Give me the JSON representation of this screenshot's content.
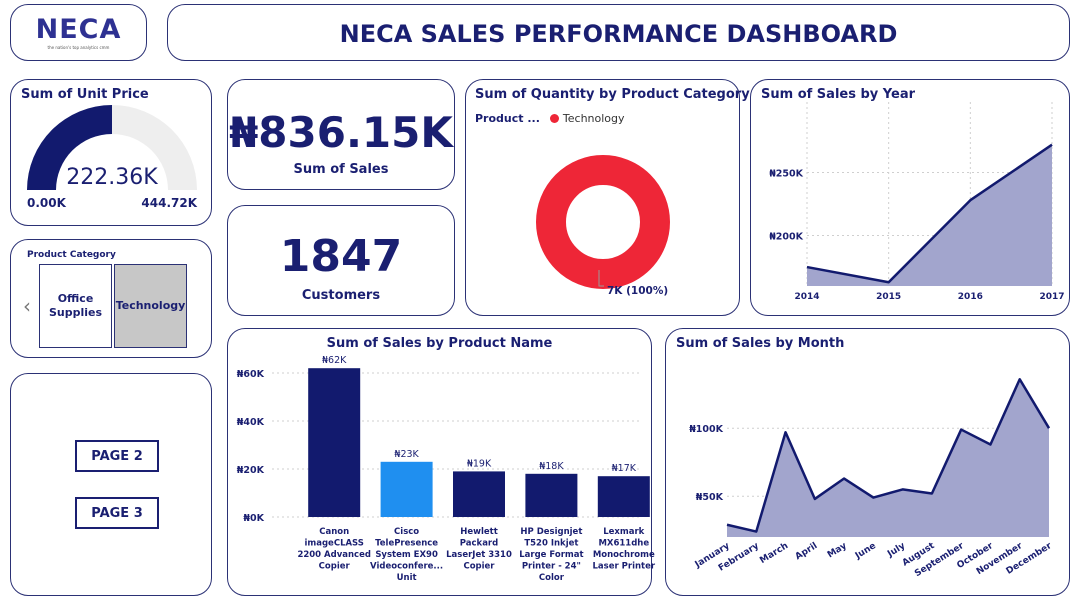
{
  "logo": {
    "name": "NECA",
    "tagline": "the nation's top analytics cmm"
  },
  "header": {
    "title": "NECA SALES PERFORMANCE DASHBOARD"
  },
  "gauge": {
    "title": "Sum of Unit Price",
    "value": 222.36,
    "value_label": "222.36K",
    "min_label": "0.00K",
    "max_label": "444.72K",
    "min": 0,
    "max": 444.72,
    "fill_color": "#121a6e",
    "track_color": "#eeeeee"
  },
  "kpis": {
    "sales": {
      "value": "₦836.15K",
      "label": "Sum of Sales"
    },
    "customers": {
      "value": "1847",
      "label": "Customers"
    }
  },
  "slicer": {
    "title": "Product Category",
    "prev_icon": "chevron-left-icon",
    "items": [
      {
        "label": "Office Supplies",
        "selected": false
      },
      {
        "label": "Technology",
        "selected": true
      }
    ]
  },
  "nav": {
    "page2": "PAGE 2",
    "page3": "PAGE 3"
  },
  "colors": {
    "navy": "#121a6e",
    "area": "#a2a5cd",
    "highlight": "#1f8ff0",
    "donut": "#ee2637",
    "border": "#2b3175"
  },
  "chart_data": [
    {
      "type": "pie",
      "title": "Sum of Quantity by Product Category",
      "legend_title": "Product ...",
      "categories": [
        "Technology"
      ],
      "values": [
        7000
      ],
      "data_labels": [
        "7K (100%)"
      ]
    },
    {
      "type": "area",
      "title": "Sum of Sales by Year",
      "x": [
        "2014",
        "2015",
        "2016",
        "2017"
      ],
      "values": [
        175000,
        163000,
        228000,
        272000
      ],
      "ylim": [
        160000,
        290000
      ],
      "yticks": [
        200000,
        250000
      ],
      "ytick_labels": [
        "₦200K",
        "₦250K"
      ]
    },
    {
      "type": "bar",
      "title": "Sum of Sales by Product Name",
      "categories": [
        "Canon imageCLASS 2200 Advanced Copier",
        "Cisco TelePresence System EX90 Videoconfere... Unit",
        "Hewlett Packard LaserJet 3310 Copier",
        "HP Designjet T520 Inkjet Large Format Printer - 24\" Color",
        "Lexmark MX611dhe Monochrome Laser Printer"
      ],
      "values": [
        62000,
        23000,
        19000,
        18000,
        17000
      ],
      "data_labels": [
        "₦62K",
        "₦23K",
        "₦19K",
        "₦18K",
        "₦17K"
      ],
      "highlight_index": 1,
      "ylim": [
        0,
        65000
      ],
      "yticks": [
        0,
        20000,
        40000,
        60000
      ],
      "ytick_labels": [
        "₦0K",
        "₦20K",
        "₦40K",
        "₦60K"
      ]
    },
    {
      "type": "area",
      "title": "Sum of Sales by Month",
      "x": [
        "January",
        "February",
        "March",
        "April",
        "May",
        "June",
        "July",
        "August",
        "September",
        "October",
        "November",
        "December"
      ],
      "values": [
        29000,
        24000,
        97000,
        48000,
        63000,
        49000,
        55000,
        52000,
        99000,
        88000,
        136000,
        100000
      ],
      "ylim": [
        20000,
        145000
      ],
      "yticks": [
        50000,
        100000
      ],
      "ytick_labels": [
        "₦50K",
        "₦100K"
      ]
    }
  ]
}
